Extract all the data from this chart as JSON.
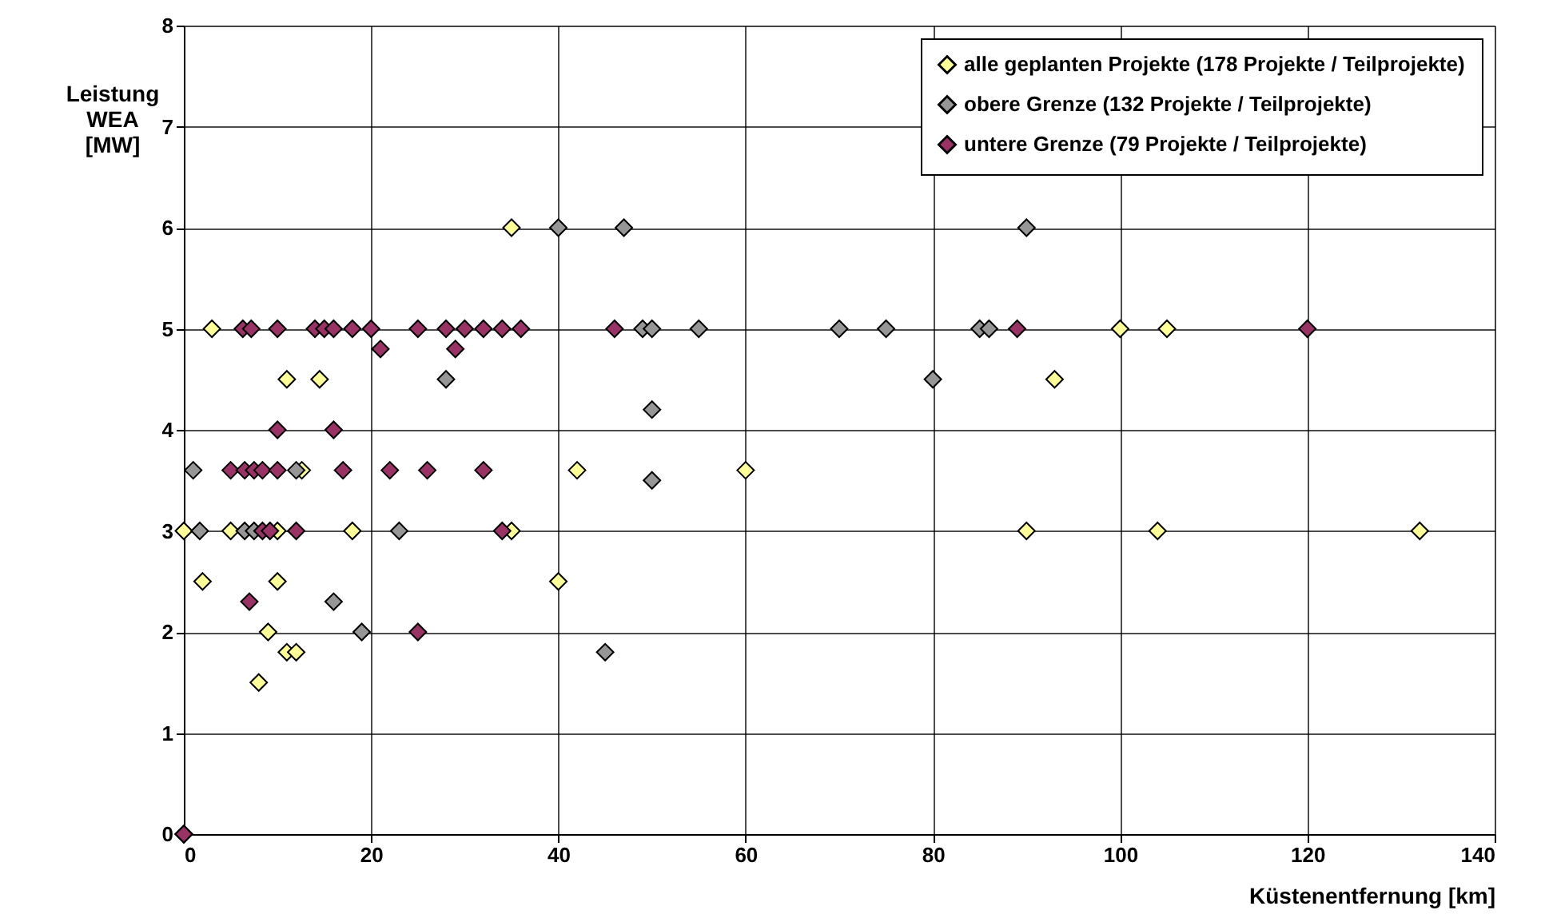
{
  "chart_data": {
    "type": "scatter",
    "xlabel": "Küstenentfernung [km]",
    "ylabel": "Leistung WEA [MW]",
    "xlim": [
      0,
      140
    ],
    "xticks": [
      0,
      20,
      40,
      60,
      80,
      100,
      120,
      140
    ],
    "ylim": [
      0,
      8
    ],
    "yticks": [
      0,
      1,
      2,
      3,
      4,
      5,
      6,
      7,
      8
    ],
    "grid": true,
    "legend": "top right",
    "marker": "diamond",
    "series": [
      {
        "name": "alle geplanten Projekte (178 Projekte / Teilprojekte)",
        "color": "#ffff99",
        "x": [
          0,
          0,
          2,
          3,
          5,
          8,
          9,
          10,
          10,
          11,
          12,
          11,
          14.5,
          12.6,
          18,
          35,
          35,
          40,
          42,
          60,
          90,
          93,
          100,
          105,
          104,
          132
        ],
        "values": [
          0,
          3,
          2.5,
          5,
          3,
          1.5,
          2,
          2.5,
          3,
          1.8,
          1.8,
          4.5,
          4.5,
          3.6,
          3,
          6,
          3,
          2.5,
          3.6,
          3.6,
          3,
          4.5,
          5,
          5,
          3,
          3
        ]
      },
      {
        "name": "obere Grenze (132 Projekte / Teilprojekte)",
        "color": "#969696",
        "x": [
          0,
          1,
          1.7,
          6.5,
          7.5,
          12,
          16,
          19,
          23,
          28,
          40,
          47,
          45,
          49,
          50,
          50,
          50,
          55,
          70,
          75,
          80,
          85,
          86,
          90
        ],
        "values": [
          0,
          3.6,
          3,
          3,
          3,
          3.6,
          2.3,
          2,
          3,
          4.5,
          6,
          6,
          1.8,
          5,
          5,
          4.2,
          3.5,
          5,
          5,
          5,
          4.5,
          5,
          5,
          6
        ]
      },
      {
        "name": "untere Grenze (79 Projekte / Teilprojekte)",
        "color": "#993366",
        "x": [
          0,
          6.3,
          7.2,
          10,
          14,
          15,
          16,
          18,
          20,
          25,
          28,
          30,
          32,
          34,
          36,
          46,
          89,
          120,
          21,
          29,
          10,
          16,
          5,
          6.5,
          7.5,
          8.4,
          10,
          17,
          22,
          26,
          32,
          8.4,
          9.2,
          12,
          34,
          7,
          25
        ],
        "values": [
          0,
          5,
          5,
          5,
          5,
          5,
          5,
          5,
          5,
          5,
          5,
          5,
          5,
          5,
          5,
          5,
          5,
          5,
          4.8,
          4.8,
          4,
          4,
          3.6,
          3.6,
          3.6,
          3.6,
          3.6,
          3.6,
          3.6,
          3.6,
          3.6,
          3,
          3,
          3,
          3,
          2.3,
          2
        ]
      }
    ]
  }
}
